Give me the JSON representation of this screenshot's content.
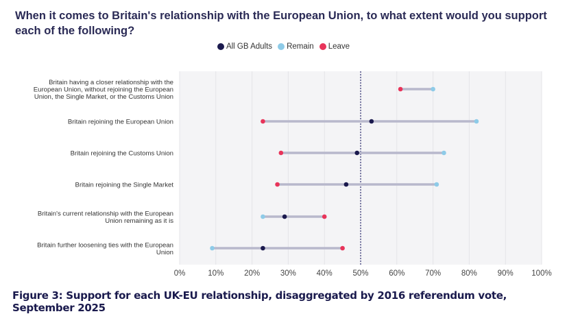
{
  "title": "When it comes to Britain's relationship with the European Union, to what extent would you support each of the following?",
  "caption": "Figure 3: Support for each UK-EU relationship, disaggregated by 2016 referendum vote, September 2025",
  "colors": {
    "all": "#1b1a4e",
    "remain": "#8ecbe8",
    "leave": "#e8345a",
    "connector": "#b8b8cc",
    "refline": "#2a2a6e",
    "grid": "#e4e4e8",
    "plot_bg": "#f4f4f6"
  },
  "chart_data": {
    "type": "dumbbell",
    "legend": [
      {
        "key": "all",
        "label": "All GB Adults"
      },
      {
        "key": "remain",
        "label": "Remain"
      },
      {
        "key": "leave",
        "label": "Leave"
      }
    ],
    "legend_position": "top",
    "xlim": [
      0,
      100
    ],
    "x_ticks": [
      "0%",
      "10%",
      "20%",
      "30%",
      "40%",
      "50%",
      "60%",
      "70%",
      "80%",
      "90%",
      "100%"
    ],
    "reference_line": 50,
    "grid": true,
    "categories": [
      {
        "lines": [
          "Britain having a closer relationship with the",
          "European Union, without rejoining the European",
          "Union, the Single Market, or the Customs Union"
        ],
        "all": null,
        "remain": 70,
        "leave": 61
      },
      {
        "lines": [
          "Britain rejoining the European Union"
        ],
        "all": 53,
        "remain": 82,
        "leave": 23
      },
      {
        "lines": [
          "Britain rejoining the Customs Union"
        ],
        "all": 49,
        "remain": 73,
        "leave": 28
      },
      {
        "lines": [
          "Britain rejoining the Single Market"
        ],
        "all": 46,
        "remain": 71,
        "leave": 27
      },
      {
        "lines": [
          "Britain's current relationship with the European",
          "Union remaining as it is"
        ],
        "all": 29,
        "remain": 23,
        "leave": 40
      },
      {
        "lines": [
          "Britain further loosening ties with the European",
          "Union"
        ],
        "all": 23,
        "remain": 9,
        "leave": 45
      }
    ]
  }
}
